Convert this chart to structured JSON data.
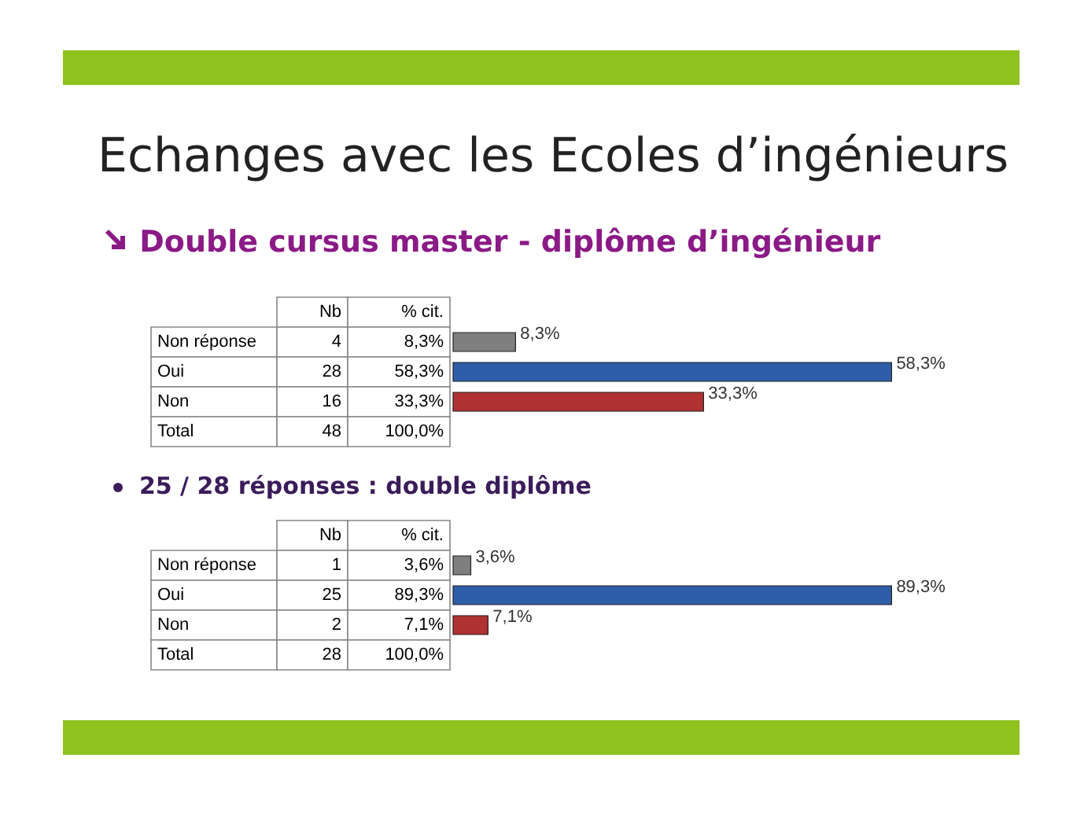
{
  "chart_data": [
    {
      "type": "bar",
      "orientation": "horizontal",
      "title": "Echanges avec les Ecoles d’ingénieurs",
      "subtitle": "Double cursus master - diplôme d’ingénieur",
      "categories": [
        "Non réponse",
        "Oui",
        "Non"
      ],
      "values": [
        8.3,
        58.3,
        33.3
      ],
      "colors": [
        "#7f7f7f",
        "#2f5ea8",
        "#b03232"
      ],
      "value_labels": [
        "8,3%",
        "58,3%",
        "33,3%"
      ],
      "annotations": [
        "Nb",
        "% cit.",
        "4",
        "28",
        "16",
        "Total",
        "48",
        "100,0%"
      ]
    },
    {
      "type": "bar",
      "orientation": "horizontal",
      "title": "25 / 28 réponses : double diplôme",
      "categories": [
        "Non réponse",
        "Oui",
        "Non"
      ],
      "values": [
        3.6,
        89.3,
        7.1
      ],
      "colors": [
        "#7f7f7f",
        "#2f5ea8",
        "#b03232"
      ],
      "value_labels": [
        "3,6%",
        "89,3%",
        "7,1%"
      ],
      "annotations": [
        "Nb",
        "% cit.",
        "1",
        "25",
        "2",
        "Total",
        "28",
        "100,0%"
      ]
    }
  ]
}
